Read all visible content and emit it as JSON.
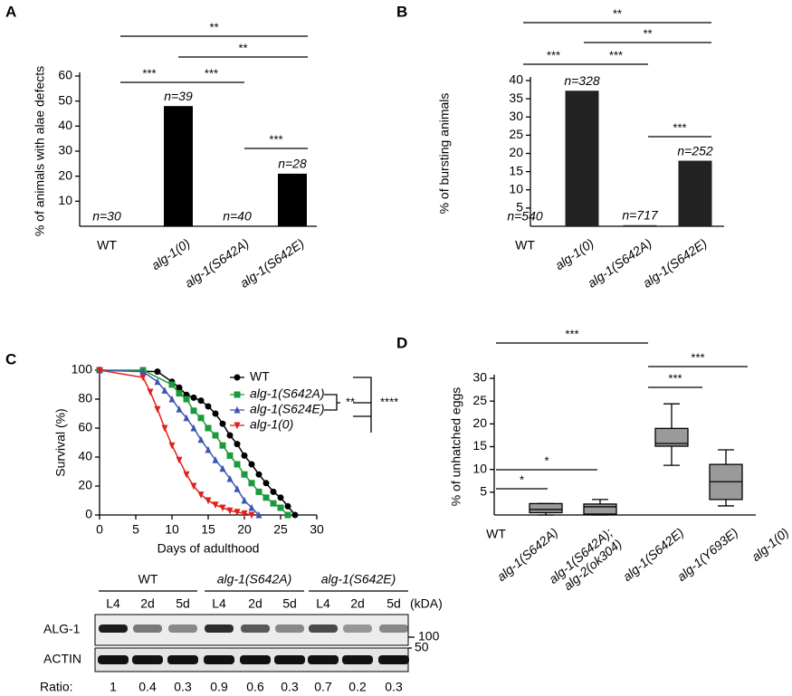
{
  "chart_data": [
    {
      "panel": "A",
      "type": "bar",
      "y_label": "% of animals with alae defects",
      "categories": [
        "WT",
        "alg-1(0)",
        "alg-1(S642A)",
        "alg-1(S642E)"
      ],
      "values": [
        0,
        48,
        0,
        21
      ],
      "n_labels": [
        "n=30",
        "n=39",
        "n=40",
        "n=28"
      ],
      "color": "#000000",
      "ylim": [
        0,
        60
      ],
      "yticks": [
        10,
        20,
        30,
        40,
        50,
        60
      ],
      "significance": [
        "**",
        "**",
        "***",
        "***",
        "***"
      ]
    },
    {
      "panel": "B",
      "type": "bar",
      "y_label": "% of bursting animals",
      "categories": [
        "WT",
        "alg-1(0)",
        "alg-1(S642A)",
        "alg-1(S642E)"
      ],
      "values": [
        0,
        37.2,
        0.3,
        18
      ],
      "n_labels": [
        "n=540",
        "n=328",
        "n=717",
        "n=252"
      ],
      "color": "#222222",
      "ylim": [
        0,
        40
      ],
      "yticks": [
        5,
        10,
        15,
        20,
        25,
        30,
        35,
        40
      ],
      "significance": [
        "**",
        "**",
        "***",
        "***",
        "***"
      ]
    },
    {
      "panel": "C",
      "type": "line",
      "x_label": "Days of adulthood",
      "y_label": "Survival (%)",
      "xlim": [
        0,
        30
      ],
      "xticks": [
        0,
        5,
        10,
        15,
        20,
        25,
        30
      ],
      "ylim": [
        0,
        100
      ],
      "yticks": [
        0,
        20,
        40,
        60,
        80,
        100
      ],
      "series": [
        {
          "name": "WT",
          "color": "#000000",
          "marker": "circle",
          "x": [
            0,
            8,
            10,
            11,
            12,
            13,
            14,
            15,
            16,
            17,
            18,
            19,
            20,
            21,
            22,
            23,
            24,
            25,
            26,
            27
          ],
          "values": [
            100,
            99,
            92,
            88,
            83,
            81,
            79,
            75,
            70,
            63,
            55,
            49,
            41,
            35,
            28,
            22,
            16,
            12,
            6,
            0
          ]
        },
        {
          "name": "alg-1(S642A)",
          "color": "#1a9a3a",
          "marker": "square",
          "x": [
            0,
            6,
            10,
            11,
            12,
            13,
            14,
            15,
            16,
            17,
            18,
            19,
            20,
            21,
            22,
            23,
            24,
            25,
            26
          ],
          "values": [
            100,
            100,
            90,
            84,
            80,
            72,
            67,
            60,
            55,
            48,
            41,
            35,
            28,
            22,
            16,
            12,
            8,
            5,
            0
          ]
        },
        {
          "name": "alg-1(S624E)",
          "color": "#3c55b0",
          "marker": "triangle",
          "x": [
            0,
            6,
            8,
            9,
            10,
            11,
            12,
            13,
            14,
            15,
            16,
            17,
            18,
            19,
            20,
            21,
            22
          ],
          "values": [
            100,
            99,
            92,
            86,
            80,
            73,
            67,
            60,
            52,
            45,
            38,
            32,
            25,
            18,
            10,
            5,
            0
          ]
        },
        {
          "name": "alg-1(0)",
          "color": "#e0201b",
          "marker": "triangle-down",
          "x": [
            0,
            6,
            7,
            8,
            9,
            10,
            11,
            12,
            13,
            14,
            15,
            16,
            17,
            18,
            19,
            20,
            21
          ],
          "values": [
            100,
            95,
            85,
            73,
            60,
            48,
            38,
            28,
            20,
            14,
            10,
            7,
            5,
            3,
            2,
            1,
            0
          ]
        }
      ],
      "significance": [
        "**",
        "****"
      ]
    },
    {
      "panel": "D",
      "type": "box",
      "y_label": "% of unhatched eggs",
      "categories": [
        "WT",
        "alg-1(S642A)",
        "alg-1(S642A);\nalg-2(ok304)",
        "alg-1(S642E)",
        "alg-1(Y693E)",
        "alg-1(0)"
      ],
      "values": [
        null,
        {
          "min": 0,
          "q1": 0.5,
          "median": 1.2,
          "q3": 2.5,
          "max": 2.5
        },
        {
          "min": 0,
          "q1": 0.2,
          "median": 1.8,
          "q3": 2.4,
          "max": 3.4
        },
        {
          "min": 10.9,
          "q1": 15.1,
          "median": 15.7,
          "q3": 19,
          "max": 24.4
        },
        {
          "min": 2,
          "q1": 3.4,
          "median": 7.3,
          "q3": 11.1,
          "max": 14.3
        },
        null
      ],
      "color": "#9a9a9a",
      "ylim": [
        0,
        30
      ],
      "yticks": [
        5,
        10,
        15,
        20,
        25,
        30
      ],
      "significance": [
        "***",
        "***",
        "***",
        "*",
        "*"
      ]
    }
  ],
  "blot": {
    "groups": [
      "WT",
      "alg-1(S642A)",
      "alg-1(S642E)"
    ],
    "lanes": [
      "L4",
      "2d",
      "5d",
      "L4",
      "2d",
      "5d",
      "L4",
      "2d",
      "5d"
    ],
    "unit": "(kDA)",
    "rows": [
      "ALG-1",
      "ACTIN"
    ],
    "markers": [
      100,
      50
    ],
    "ratio_label": "Ratio:",
    "ratios": [
      1,
      0.4,
      0.3,
      0.9,
      0.6,
      0.3,
      0.7,
      0.2,
      0.3
    ]
  }
}
